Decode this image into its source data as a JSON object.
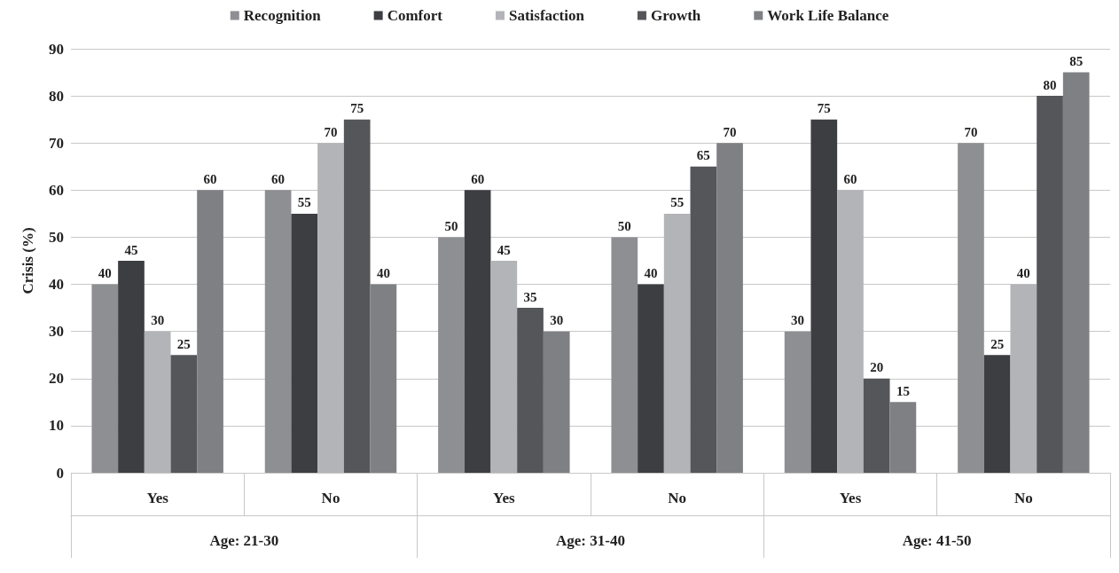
{
  "chart_data": {
    "type": "bar",
    "ylabel": "Crisis (%)",
    "categories": [
      "Yes",
      "No",
      "Yes",
      "No",
      "Yes",
      "No"
    ],
    "annotations": [
      "Age: 21-30",
      "Age: 31-40",
      "Age: 41-50"
    ],
    "series": [
      {
        "name": "Recognition",
        "color": "#8e8f93",
        "values": [
          40,
          60,
          50,
          50,
          30,
          70
        ]
      },
      {
        "name": "Comfort",
        "color": "#3d3e42",
        "values": [
          45,
          55,
          60,
          40,
          75,
          25
        ]
      },
      {
        "name": "Satisfaction",
        "color": "#b3b4b8",
        "values": [
          30,
          70,
          45,
          55,
          60,
          40
        ]
      },
      {
        "name": "Growth",
        "color": "#55565a",
        "values": [
          25,
          75,
          35,
          65,
          20,
          80
        ]
      },
      {
        "name": "Work Life Balance",
        "color": "#7f8084",
        "values": [
          60,
          40,
          30,
          70,
          15,
          85
        ]
      }
    ],
    "ylim": [
      0,
      90
    ],
    "yticks": [
      0,
      10,
      20,
      30,
      40,
      50,
      60,
      70,
      80,
      90
    ],
    "grid": "y",
    "legend": "top",
    "data_labels": true
  }
}
